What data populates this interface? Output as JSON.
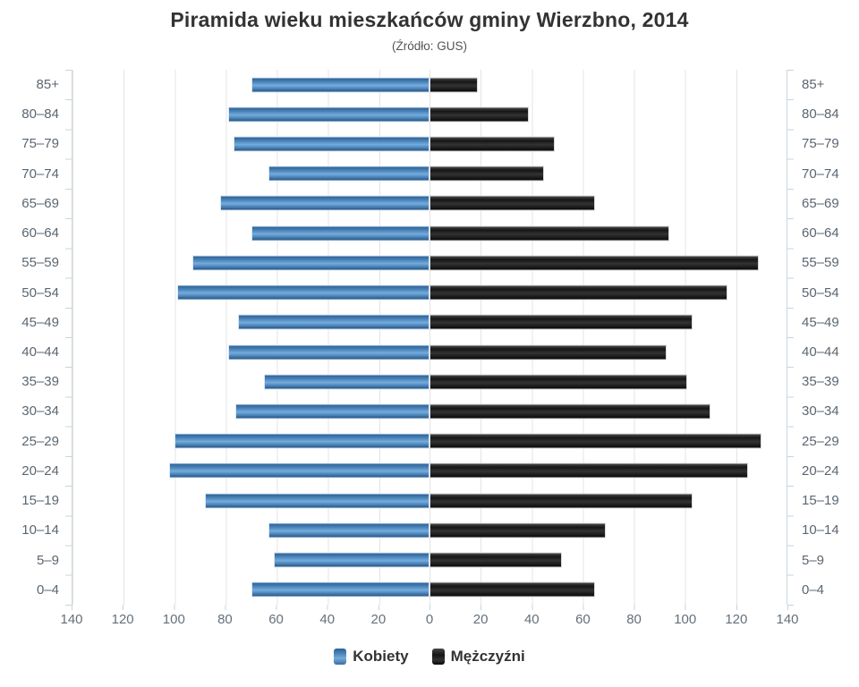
{
  "title": "Piramida wieku mieszkańców gminy Wierzbno, 2014",
  "subtitle": "(Źródło: GUS)",
  "legend": {
    "items": [
      {
        "label": "Kobiety",
        "color": "#4f86bd"
      },
      {
        "label": "Mężczyźni",
        "color": "#1a1a1a"
      }
    ]
  },
  "colors": {
    "women_bar": "#4f86bd",
    "men_bar": "#1a1a1a",
    "gridline": "#e4e4e4",
    "axis": "#ccd6dc",
    "axis_label": "#5b6670",
    "title_text": "#333333",
    "subtitle_text": "#555555"
  },
  "chart_data": {
    "type": "bar",
    "variant": "population-pyramid",
    "orientation": "horizontal",
    "title": "Piramida wieku mieszkańców gminy Wierzbno, 2014",
    "subtitle": "(Źródło: GUS)",
    "categories": [
      "85+",
      "80–84",
      "75–79",
      "70–74",
      "65–69",
      "60–64",
      "55–59",
      "50–54",
      "45–49",
      "40–44",
      "35–39",
      "30–34",
      "25–29",
      "20–24",
      "15–19",
      "10–14",
      "5–9",
      "0–4"
    ],
    "series": [
      {
        "name": "Kobiety",
        "side": "left",
        "color": "#4f86bd",
        "values": [
          70,
          79,
          77,
          63,
          82,
          70,
          93,
          99,
          75,
          79,
          65,
          76,
          100,
          102,
          88,
          63,
          61,
          70
        ]
      },
      {
        "name": "Mężczyźni",
        "side": "right",
        "color": "#1a1a1a",
        "values": [
          19,
          39,
          49,
          45,
          65,
          94,
          129,
          117,
          103,
          93,
          101,
          110,
          130,
          125,
          103,
          69,
          52,
          65
        ]
      }
    ],
    "x_axis": {
      "max_each_side": 140,
      "tick_interval": 20,
      "tick_labels": [
        "140",
        "120",
        "100",
        "80",
        "60",
        "40",
        "20",
        "0",
        "20",
        "40",
        "60",
        "80",
        "100",
        "120",
        "140"
      ]
    },
    "grid": true,
    "legend_position": "bottom"
  }
}
